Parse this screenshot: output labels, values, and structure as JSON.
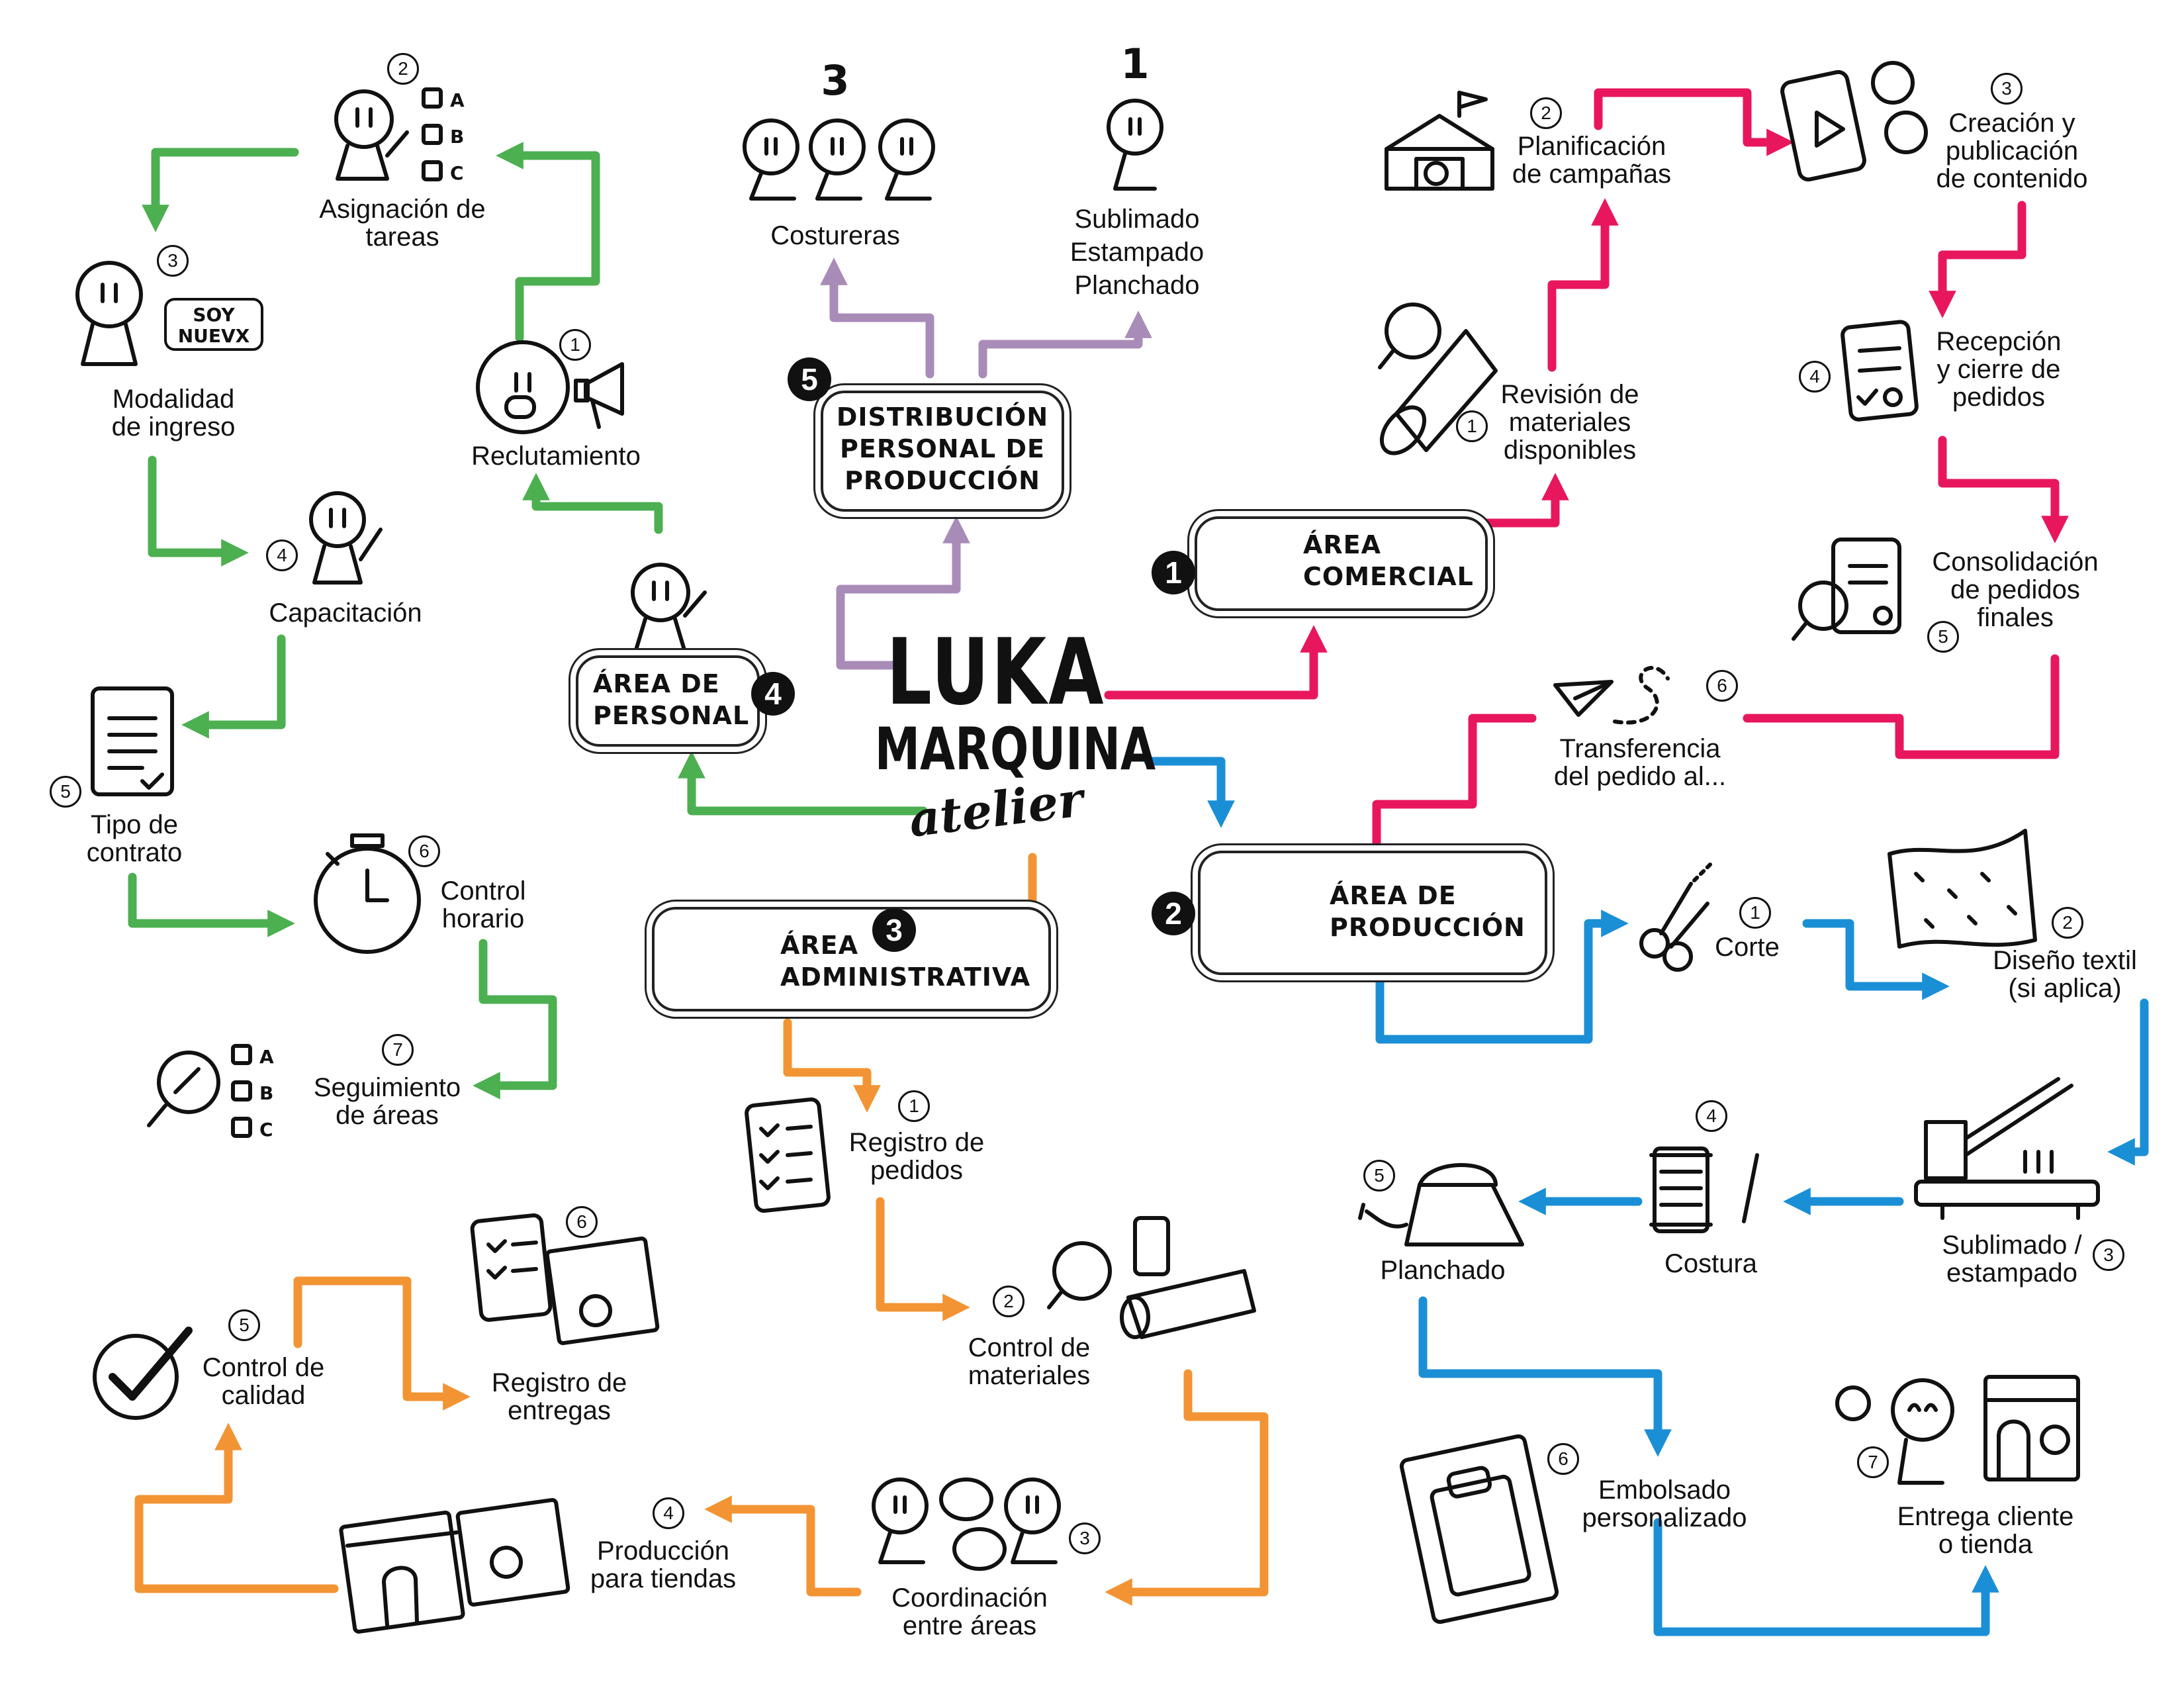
{
  "brand": {
    "line1": "LUKA",
    "line2": "MARQUINA",
    "line3": "atelier"
  },
  "colors": {
    "green": "#4caf50",
    "pink": "#e8175d",
    "blue": "#1b8fd6",
    "orange": "#f29434",
    "purple": "#a98bb8",
    "ink": "#111111"
  },
  "areas": {
    "comercial": {
      "badge": "1",
      "line1": "ÁREA",
      "line2": "COMERCIAL",
      "icon": "checklist-clipboard-icon"
    },
    "produccion": {
      "badge": "2",
      "line1": "ÁREA DE",
      "line2": "PRODUCCIÓN",
      "icon": "sewing-machine-icon"
    },
    "administrativa": {
      "badge": "3",
      "line1": "ÁREA",
      "line2": "ADMINISTRATIVA",
      "icon": "briefcase-icon"
    },
    "personal": {
      "badge": "4",
      "line1": "ÁREA DE",
      "line2": "PERSONAL",
      "icon": "person-icon"
    },
    "distribucion": {
      "badge": "5",
      "line1": "DISTRIBUCIÓN",
      "line2": "PERSONAL DE",
      "line3": "PRODUCCIÓN"
    }
  },
  "distribucion_items": {
    "costureras": {
      "count": "3",
      "label": "Costureras",
      "icon": "three-people-icon"
    },
    "sublimado": {
      "count": "1",
      "line1": "Sublimado",
      "line2": "Estampado",
      "line3": "Planchado",
      "icon": "person-icon"
    }
  },
  "comercial_steps": [
    {
      "n": "1",
      "line1": "Revisión de",
      "line2": "materiales",
      "line3": "disponibles",
      "icon": "fabric-roll-magnifier-icon"
    },
    {
      "n": "2",
      "line1": "Planificación",
      "line2": "de campañas",
      "icon": "store-flag-icon"
    },
    {
      "n": "3",
      "line1": "Creación y",
      "line2": "publicación",
      "line3": "de contenido",
      "icon": "phone-social-icon"
    },
    {
      "n": "4",
      "line1": "Recepción",
      "line2": "y cierre de",
      "line3": "pedidos",
      "icon": "order-clipboard-icon"
    },
    {
      "n": "5",
      "line1": "Consolidación",
      "line2": "de pedidos",
      "line3": "finales",
      "icon": "clipboard-magnifier-icon"
    },
    {
      "n": "6",
      "line1": "Transferencia",
      "line2": "del pedido al...",
      "icon": "paper-plane-icon"
    }
  ],
  "produccion_steps": [
    {
      "n": "1",
      "label": "Corte",
      "icon": "scissors-icon"
    },
    {
      "n": "2",
      "line1": "Diseño textil",
      "line2": "(si aplica)",
      "icon": "patterned-fabric-icon"
    },
    {
      "n": "3",
      "line1": "Sublimado /",
      "line2": "estampado",
      "icon": "heat-press-icon"
    },
    {
      "n": "4",
      "label": "Costura",
      "icon": "thread-spool-needle-icon"
    },
    {
      "n": "5",
      "label": "Planchado",
      "icon": "iron-icon"
    },
    {
      "n": "6",
      "line1": "Embolsado",
      "line2": "personalizado",
      "icon": "packaged-shirt-icon"
    },
    {
      "n": "7",
      "line1": "Entrega cliente",
      "line2": "o tienda",
      "icon": "customer-store-icon"
    }
  ],
  "administrativa_steps": [
    {
      "n": "1",
      "line1": "Registro de",
      "line2": "pedidos",
      "icon": "checklist-icon"
    },
    {
      "n": "2",
      "line1": "Control de",
      "line2": "materiales",
      "icon": "materials-magnifier-icon"
    },
    {
      "n": "3",
      "line1": "Coordinación",
      "line2": "entre áreas",
      "icon": "people-chat-icon"
    },
    {
      "n": "4",
      "line1": "Producción",
      "line2": "para tiendas",
      "icon": "store-box-icon"
    },
    {
      "n": "5",
      "line1": "Control de",
      "line2": "calidad",
      "icon": "checkmark-circle-icon"
    },
    {
      "n": "6",
      "line1": "Registro de",
      "line2": "entregas",
      "icon": "checklist-box-icon"
    }
  ],
  "personal_steps": [
    {
      "n": "1",
      "label": "Reclutamiento",
      "icon": "megaphone-person-icon"
    },
    {
      "n": "2",
      "line1": "Asignación de",
      "line2": "tareas",
      "icon": "person-options-icon"
    },
    {
      "n": "3",
      "line1": "Modalidad",
      "line2": "de ingreso",
      "icon": "person-speech-icon"
    },
    {
      "n": "4",
      "label": "Capacitación",
      "icon": "person-pointer-icon"
    },
    {
      "n": "5",
      "line1": "Tipo de",
      "line2": "contrato",
      "icon": "contract-icon"
    },
    {
      "n": "6",
      "line1": "Control",
      "line2": "horario",
      "icon": "stopwatch-icon"
    },
    {
      "n": "7",
      "line1": "Seguimiento",
      "line2": "de áreas",
      "icon": "magnifier-options-icon"
    }
  ],
  "misc": {
    "soy1": "SOY",
    "soy2": "NUEVX",
    "optA": "A",
    "optB": "B",
    "optC": "C"
  }
}
